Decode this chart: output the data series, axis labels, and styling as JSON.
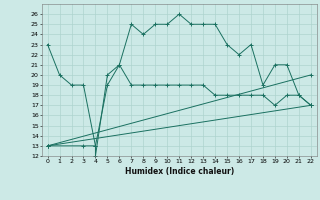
{
  "xlabel": "Humidex (Indice chaleur)",
  "xlim": [
    -0.5,
    22.5
  ],
  "ylim": [
    12,
    27
  ],
  "yticks": [
    12,
    13,
    14,
    15,
    16,
    17,
    18,
    19,
    20,
    21,
    22,
    23,
    24,
    25,
    26
  ],
  "xticks": [
    0,
    1,
    2,
    3,
    4,
    5,
    6,
    7,
    8,
    9,
    10,
    11,
    12,
    13,
    14,
    15,
    16,
    17,
    18,
    19,
    20,
    21,
    22
  ],
  "bg_color": "#cce9e6",
  "grid_color": "#aed4cf",
  "line_color": "#1a7060",
  "series": [
    {
      "x": [
        0,
        1,
        2,
        3,
        4,
        4,
        5,
        6,
        7,
        8,
        9,
        10,
        11,
        12,
        13,
        14,
        15,
        16,
        17,
        18,
        19,
        20,
        21,
        22
      ],
      "y": [
        23,
        20,
        19,
        19,
        13,
        12,
        20,
        21,
        25,
        24,
        25,
        25,
        26,
        25,
        25,
        25,
        23,
        22,
        23,
        19,
        21,
        21,
        18,
        17
      ]
    },
    {
      "x": [
        0,
        3,
        4,
        5,
        6,
        7,
        8,
        9,
        10,
        11,
        12,
        13,
        14,
        15,
        16,
        17,
        18,
        19,
        20,
        21,
        22
      ],
      "y": [
        13,
        13,
        13,
        19,
        21,
        19,
        19,
        19,
        19,
        19,
        19,
        19,
        18,
        18,
        18,
        18,
        18,
        17,
        18,
        18,
        17
      ]
    },
    {
      "x": [
        0,
        22
      ],
      "y": [
        13,
        20
      ]
    },
    {
      "x": [
        0,
        22
      ],
      "y": [
        13,
        17
      ]
    }
  ]
}
